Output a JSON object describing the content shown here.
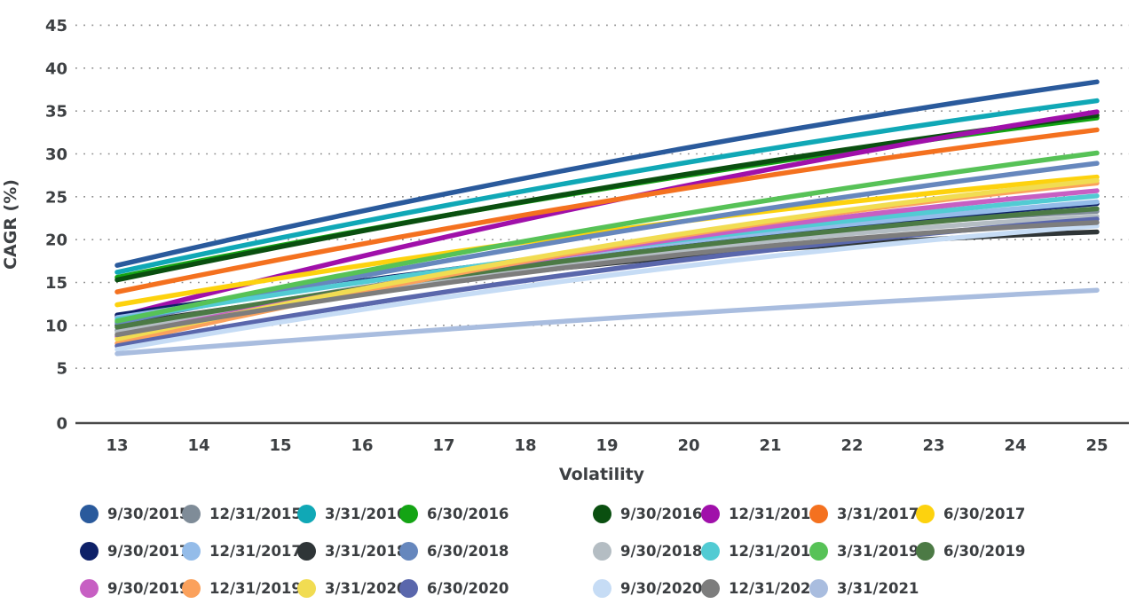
{
  "chart_data": {
    "type": "line",
    "title": "",
    "xlabel": "Volatility",
    "ylabel": "CAGR (%)",
    "xlim": [
      13,
      25
    ],
    "ylim": [
      0,
      45
    ],
    "x_ticks": [
      13,
      14,
      15,
      16,
      17,
      18,
      19,
      20,
      21,
      22,
      23,
      24,
      25
    ],
    "y_ticks": [
      0,
      5,
      10,
      15,
      20,
      25,
      30,
      35,
      40,
      45
    ],
    "grid": "horizontal-dotted",
    "legend_position": "bottom",
    "x": [
      13,
      19,
      25
    ],
    "series": [
      {
        "name": "9/30/2015",
        "color": "#2a5a9c",
        "values": [
          17.0,
          29.0,
          38.4
        ]
      },
      {
        "name": "12/31/2015",
        "color": "#7f8c98",
        "values": [
          9.4,
          18.4,
          23.3
        ]
      },
      {
        "name": "3/31/2016",
        "color": "#10a8b6",
        "values": [
          16.2,
          27.4,
          36.2
        ]
      },
      {
        "name": "6/30/2016",
        "color": "#14a414",
        "values": [
          15.6,
          26.0,
          34.2
        ]
      },
      {
        "name": "9/30/2016",
        "color": "#0a4f10",
        "values": [
          15.3,
          26.1,
          34.5
        ]
      },
      {
        "name": "12/31/2016",
        "color": "#a010aa",
        "values": [
          11.0,
          24.4,
          34.9
        ]
      },
      {
        "name": "3/31/2017",
        "color": "#f4711f",
        "values": [
          13.9,
          24.5,
          32.8
        ]
      },
      {
        "name": "6/30/2017",
        "color": "#fdd20e",
        "values": [
          12.4,
          21.0,
          27.3
        ]
      },
      {
        "name": "9/30/2017",
        "color": "#0e2168",
        "values": [
          11.2,
          18.7,
          24.2
        ]
      },
      {
        "name": "12/31/2017",
        "color": "#94bce9",
        "values": [
          10.9,
          18.7,
          24.4
        ]
      },
      {
        "name": "3/31/2018",
        "color": "#2f3537",
        "values": [
          10.0,
          17.2,
          20.9
        ]
      },
      {
        "name": "6/30/2018",
        "color": "#6687bd",
        "values": [
          10.3,
          20.7,
          28.9
        ]
      },
      {
        "name": "9/30/2018",
        "color": "#b4bdc3",
        "values": [
          9.2,
          17.8,
          22.7
        ]
      },
      {
        "name": "12/31/2018",
        "color": "#52cbd3",
        "values": [
          10.7,
          18.9,
          25.1
        ]
      },
      {
        "name": "3/31/2019",
        "color": "#57c257",
        "values": [
          10.5,
          21.5,
          30.1
        ]
      },
      {
        "name": "6/30/2019",
        "color": "#4c7a45",
        "values": [
          9.8,
          18.1,
          23.6
        ]
      },
      {
        "name": "9/30/2019",
        "color": "#c75fc3",
        "values": [
          8.7,
          18.9,
          25.7
        ]
      },
      {
        "name": "12/31/2019",
        "color": "#fba15c",
        "values": [
          7.9,
          19.1,
          26.6
        ]
      },
      {
        "name": "3/31/2020",
        "color": "#f1dc52",
        "values": [
          8.4,
          19.3,
          26.9
        ]
      },
      {
        "name": "6/30/2020",
        "color": "#5a67ac",
        "values": [
          7.6,
          16.5,
          22.4
        ]
      },
      {
        "name": "9/30/2020",
        "color": "#c6dcf5",
        "values": [
          7.2,
          15.8,
          21.6
        ]
      },
      {
        "name": "12/31/2020",
        "color": "#7d7d7d",
        "values": [
          8.9,
          17.3,
          22.0
        ]
      },
      {
        "name": "3/31/2021",
        "color": "#a9bddf",
        "values": [
          6.7,
          10.8,
          14.1
        ]
      }
    ]
  }
}
